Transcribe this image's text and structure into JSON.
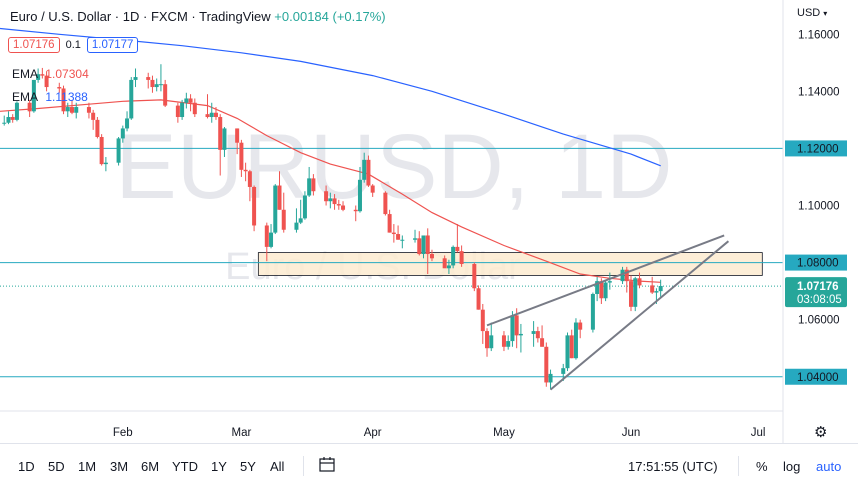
{
  "header": {
    "symbol": "Euro / U.S. Dollar",
    "interval": "1D",
    "source": "FXCM",
    "platform": "TradingView",
    "change": "+0.00184 (+0.17%)"
  },
  "quote": {
    "sell": "1.07176",
    "spread": "0.1",
    "buy": "1.07177"
  },
  "indicators": [
    {
      "name": "EMA",
      "value": "1.07304",
      "color": "#ef5350"
    },
    {
      "name": "EMA",
      "value": "1.11388",
      "color": "#2962ff"
    }
  ],
  "currency_selector": "USD",
  "watermark": {
    "symbol": "EURUSD, 1D",
    "description": "Euro / U.S. Dollar"
  },
  "price_scale": {
    "labels": [
      "1.16000",
      "1.14000",
      "1.12000",
      "1.10000",
      "1.08000",
      "1.06000",
      "1.04000"
    ],
    "current_price": "1.07176",
    "countdown": "03:08:05"
  },
  "time_scale": {
    "labels": [
      "Feb",
      "Mar",
      "Apr",
      "May",
      "Jun",
      "Jul"
    ]
  },
  "bottom_toolbar": {
    "timeframes": [
      "1D",
      "5D",
      "1M",
      "3M",
      "6M",
      "YTD",
      "1Y",
      "5Y",
      "All"
    ],
    "clock": "17:51:55 (UTC)",
    "percent": "%",
    "log": "log",
    "auto": "auto"
  },
  "colors": {
    "up": "#26a69a",
    "down": "#ef5350",
    "ema_fast": "#ef5350",
    "ema_slow": "#2962ff",
    "horizontal_line": "#26a9c0",
    "trendline": "#787b86",
    "zone_fill": "#fdebd0"
  },
  "chart_data": {
    "type": "candlestick",
    "ylim": [
      1.028,
      1.172
    ],
    "x_range_days": [
      "2022-01-03",
      "2022-07-05"
    ],
    "time_labels": [
      {
        "label": "Feb",
        "date": "2022-02-01"
      },
      {
        "label": "Mar",
        "date": "2022-03-01"
      },
      {
        "label": "Apr",
        "date": "2022-04-01"
      },
      {
        "label": "May",
        "date": "2022-05-02"
      },
      {
        "label": "Jun",
        "date": "2022-06-01"
      },
      {
        "label": "Jul",
        "date": "2022-07-01"
      }
    ],
    "candles": [
      {
        "date": "2022-01-04",
        "o": 1.129,
        "h": 1.1315,
        "l": 1.128,
        "c": 1.129
      },
      {
        "date": "2022-01-05",
        "o": 1.129,
        "h": 1.133,
        "l": 1.1285,
        "c": 1.131
      },
      {
        "date": "2022-01-06",
        "o": 1.131,
        "h": 1.132,
        "l": 1.129,
        "c": 1.13
      },
      {
        "date": "2022-01-07",
        "o": 1.13,
        "h": 1.1365,
        "l": 1.1295,
        "c": 1.136
      },
      {
        "date": "2022-01-10",
        "o": 1.136,
        "h": 1.137,
        "l": 1.131,
        "c": 1.133
      },
      {
        "date": "2022-01-11",
        "o": 1.133,
        "h": 1.144,
        "l": 1.1325,
        "c": 1.144
      },
      {
        "date": "2022-01-12",
        "o": 1.144,
        "h": 1.148,
        "l": 1.143,
        "c": 1.146
      },
      {
        "date": "2022-01-13",
        "o": 1.146,
        "h": 1.1482,
        "l": 1.1445,
        "c": 1.1455
      },
      {
        "date": "2022-01-14",
        "o": 1.1455,
        "h": 1.147,
        "l": 1.14,
        "c": 1.1415
      },
      {
        "date": "2022-01-17",
        "o": 1.1415,
        "h": 1.143,
        "l": 1.1395,
        "c": 1.141
      },
      {
        "date": "2022-01-18",
        "o": 1.141,
        "h": 1.142,
        "l": 1.132,
        "c": 1.133
      },
      {
        "date": "2022-01-19",
        "o": 1.133,
        "h": 1.136,
        "l": 1.131,
        "c": 1.1345
      },
      {
        "date": "2022-01-20",
        "o": 1.1345,
        "h": 1.137,
        "l": 1.132,
        "c": 1.1325
      },
      {
        "date": "2022-01-21",
        "o": 1.1325,
        "h": 1.136,
        "l": 1.1305,
        "c": 1.1345
      },
      {
        "date": "2022-01-24",
        "o": 1.1345,
        "h": 1.136,
        "l": 1.1305,
        "c": 1.1325
      },
      {
        "date": "2022-01-25",
        "o": 1.1325,
        "h": 1.1335,
        "l": 1.1265,
        "c": 1.13
      },
      {
        "date": "2022-01-26",
        "o": 1.13,
        "h": 1.131,
        "l": 1.1235,
        "c": 1.124
      },
      {
        "date": "2022-01-27",
        "o": 1.124,
        "h": 1.125,
        "l": 1.114,
        "c": 1.1145
      },
      {
        "date": "2022-01-28",
        "o": 1.1145,
        "h": 1.117,
        "l": 1.112,
        "c": 1.115
      },
      {
        "date": "2022-01-31",
        "o": 1.115,
        "h": 1.124,
        "l": 1.114,
        "c": 1.1235
      },
      {
        "date": "2022-02-01",
        "o": 1.1235,
        "h": 1.128,
        "l": 1.122,
        "c": 1.127
      },
      {
        "date": "2022-02-02",
        "o": 1.127,
        "h": 1.133,
        "l": 1.126,
        "c": 1.1305
      },
      {
        "date": "2022-02-03",
        "o": 1.1305,
        "h": 1.145,
        "l": 1.13,
        "c": 1.144
      },
      {
        "date": "2022-02-04",
        "o": 1.144,
        "h": 1.148,
        "l": 1.1415,
        "c": 1.145
      },
      {
        "date": "2022-02-07",
        "o": 1.145,
        "h": 1.1465,
        "l": 1.141,
        "c": 1.144
      },
      {
        "date": "2022-02-08",
        "o": 1.144,
        "h": 1.1455,
        "l": 1.1395,
        "c": 1.1415
      },
      {
        "date": "2022-02-09",
        "o": 1.1415,
        "h": 1.1445,
        "l": 1.14,
        "c": 1.1425
      },
      {
        "date": "2022-02-10",
        "o": 1.1425,
        "h": 1.1495,
        "l": 1.14,
        "c": 1.1425
      },
      {
        "date": "2022-02-11",
        "o": 1.1425,
        "h": 1.144,
        "l": 1.1345,
        "c": 1.135
      },
      {
        "date": "2022-02-14",
        "o": 1.135,
        "h": 1.136,
        "l": 1.129,
        "c": 1.131
      },
      {
        "date": "2022-02-15",
        "o": 1.131,
        "h": 1.137,
        "l": 1.13,
        "c": 1.136
      },
      {
        "date": "2022-02-16",
        "o": 1.136,
        "h": 1.1395,
        "l": 1.134,
        "c": 1.1375
      },
      {
        "date": "2022-02-17",
        "o": 1.1375,
        "h": 1.139,
        "l": 1.133,
        "c": 1.136
      },
      {
        "date": "2022-02-18",
        "o": 1.136,
        "h": 1.1375,
        "l": 1.131,
        "c": 1.132
      },
      {
        "date": "2022-02-21",
        "o": 1.132,
        "h": 1.139,
        "l": 1.1305,
        "c": 1.131
      },
      {
        "date": "2022-02-22",
        "o": 1.131,
        "h": 1.136,
        "l": 1.129,
        "c": 1.1325
      },
      {
        "date": "2022-02-23",
        "o": 1.1325,
        "h": 1.1345,
        "l": 1.13,
        "c": 1.131
      },
      {
        "date": "2022-02-24",
        "o": 1.131,
        "h": 1.132,
        "l": 1.1105,
        "c": 1.1195
      },
      {
        "date": "2022-02-25",
        "o": 1.1195,
        "h": 1.1275,
        "l": 1.117,
        "c": 1.127
      },
      {
        "date": "2022-02-28",
        "o": 1.127,
        "h": 1.127,
        "l": 1.118,
        "c": 1.122
      },
      {
        "date": "2022-03-01",
        "o": 1.122,
        "h": 1.123,
        "l": 1.11,
        "c": 1.1125
      },
      {
        "date": "2022-03-02",
        "o": 1.1125,
        "h": 1.115,
        "l": 1.1085,
        "c": 1.112
      },
      {
        "date": "2022-03-03",
        "o": 1.112,
        "h": 1.1125,
        "l": 1.1015,
        "c": 1.1065
      },
      {
        "date": "2022-03-04",
        "o": 1.1065,
        "h": 1.107,
        "l": 1.091,
        "c": 1.093
      },
      {
        "date": "2022-03-07",
        "o": 1.093,
        "h": 1.094,
        "l": 1.0805,
        "c": 1.0855
      },
      {
        "date": "2022-03-08",
        "o": 1.0855,
        "h": 1.0935,
        "l": 1.085,
        "c": 1.0905
      },
      {
        "date": "2022-03-09",
        "o": 1.0905,
        "h": 1.1075,
        "l": 1.09,
        "c": 1.107
      },
      {
        "date": "2022-03-10",
        "o": 1.107,
        "h": 1.112,
        "l": 1.0985,
        "c": 1.0985
      },
      {
        "date": "2022-03-11",
        "o": 1.0985,
        "h": 1.1045,
        "l": 1.0905,
        "c": 1.0915
      },
      {
        "date": "2022-03-14",
        "o": 1.0915,
        "h": 1.099,
        "l": 1.0905,
        "c": 1.094
      },
      {
        "date": "2022-03-15",
        "o": 1.094,
        "h": 1.102,
        "l": 1.0935,
        "c": 1.0955
      },
      {
        "date": "2022-03-16",
        "o": 1.0955,
        "h": 1.105,
        "l": 1.095,
        "c": 1.1035
      },
      {
        "date": "2022-03-17",
        "o": 1.1035,
        "h": 1.1135,
        "l": 1.103,
        "c": 1.1095
      },
      {
        "date": "2022-03-18",
        "o": 1.1095,
        "h": 1.111,
        "l": 1.1035,
        "c": 1.105
      },
      {
        "date": "2022-03-21",
        "o": 1.105,
        "h": 1.107,
        "l": 1.1,
        "c": 1.1015
      },
      {
        "date": "2022-03-22",
        "o": 1.1015,
        "h": 1.1045,
        "l": 1.099,
        "c": 1.1025
      },
      {
        "date": "2022-03-23",
        "o": 1.1025,
        "h": 1.104,
        "l": 1.0985,
        "c": 1.1005
      },
      {
        "date": "2022-03-24",
        "o": 1.1005,
        "h": 1.102,
        "l": 1.0985,
        "c": 1.1
      },
      {
        "date": "2022-03-25",
        "o": 1.1,
        "h": 1.1015,
        "l": 1.098,
        "c": 1.0985
      },
      {
        "date": "2022-03-28",
        "o": 1.0985,
        "h": 1.1,
        "l": 1.0945,
        "c": 1.098
      },
      {
        "date": "2022-03-29",
        "o": 1.098,
        "h": 1.1135,
        "l": 1.0975,
        "c": 1.109
      },
      {
        "date": "2022-03-30",
        "o": 1.109,
        "h": 1.1185,
        "l": 1.108,
        "c": 1.116
      },
      {
        "date": "2022-03-31",
        "o": 1.116,
        "h": 1.1175,
        "l": 1.1065,
        "c": 1.107
      },
      {
        "date": "2022-04-01",
        "o": 1.107,
        "h": 1.1075,
        "l": 1.103,
        "c": 1.1045
      },
      {
        "date": "2022-04-04",
        "o": 1.1045,
        "h": 1.105,
        "l": 1.0965,
        "c": 1.097
      },
      {
        "date": "2022-04-05",
        "o": 1.097,
        "h": 1.0985,
        "l": 1.0905,
        "c": 1.0905
      },
      {
        "date": "2022-04-06",
        "o": 1.0905,
        "h": 1.0935,
        "l": 1.087,
        "c": 1.09
      },
      {
        "date": "2022-04-07",
        "o": 1.09,
        "h": 1.093,
        "l": 1.088,
        "c": 1.088
      },
      {
        "date": "2022-04-08",
        "o": 1.088,
        "h": 1.0895,
        "l": 1.085,
        "c": 1.088
      },
      {
        "date": "2022-04-11",
        "o": 1.088,
        "h": 1.0915,
        "l": 1.087,
        "c": 1.0885
      },
      {
        "date": "2022-04-12",
        "o": 1.0885,
        "h": 1.091,
        "l": 1.0825,
        "c": 1.083
      },
      {
        "date": "2022-04-13",
        "o": 1.083,
        "h": 1.0885,
        "l": 1.0815,
        "c": 1.0895
      },
      {
        "date": "2022-04-14",
        "o": 1.0895,
        "h": 1.092,
        "l": 1.076,
        "c": 1.083
      },
      {
        "date": "2022-04-15",
        "o": 1.083,
        "h": 1.0845,
        "l": 1.0805,
        "c": 1.0815
      },
      {
        "date": "2022-04-18",
        "o": 1.0815,
        "h": 1.0825,
        "l": 1.0785,
        "c": 1.078
      },
      {
        "date": "2022-04-19",
        "o": 1.078,
        "h": 1.081,
        "l": 1.076,
        "c": 1.079
      },
      {
        "date": "2022-04-20",
        "o": 1.079,
        "h": 1.086,
        "l": 1.078,
        "c": 1.0855
      },
      {
        "date": "2022-04-21",
        "o": 1.0855,
        "h": 1.0935,
        "l": 1.0835,
        "c": 1.084
      },
      {
        "date": "2022-04-22",
        "o": 1.084,
        "h": 1.086,
        "l": 1.0785,
        "c": 1.0795
      },
      {
        "date": "2022-04-25",
        "o": 1.0795,
        "h": 1.08,
        "l": 1.07,
        "c": 1.071
      },
      {
        "date": "2022-04-26",
        "o": 1.071,
        "h": 1.072,
        "l": 1.0635,
        "c": 1.0635
      },
      {
        "date": "2022-04-27",
        "o": 1.0635,
        "h": 1.0655,
        "l": 1.0515,
        "c": 1.056
      },
      {
        "date": "2022-04-28",
        "o": 1.056,
        "h": 1.057,
        "l": 1.047,
        "c": 1.05
      },
      {
        "date": "2022-04-29",
        "o": 1.05,
        "h": 1.059,
        "l": 1.049,
        "c": 1.0545
      },
      {
        "date": "2022-05-02",
        "o": 1.0545,
        "h": 1.056,
        "l": 1.049,
        "c": 1.0505
      },
      {
        "date": "2022-05-03",
        "o": 1.0505,
        "h": 1.0545,
        "l": 1.0495,
        "c": 1.0525
      },
      {
        "date": "2022-05-04",
        "o": 1.0525,
        "h": 1.063,
        "l": 1.0505,
        "c": 1.0615
      },
      {
        "date": "2022-05-05",
        "o": 1.0615,
        "h": 1.064,
        "l": 1.05,
        "c": 1.0545
      },
      {
        "date": "2022-05-06",
        "o": 1.0545,
        "h": 1.0585,
        "l": 1.0485,
        "c": 1.055
      },
      {
        "date": "2022-05-09",
        "o": 1.055,
        "h": 1.0595,
        "l": 1.0505,
        "c": 1.056
      },
      {
        "date": "2022-05-10",
        "o": 1.056,
        "h": 1.0575,
        "l": 1.052,
        "c": 1.0535
      },
      {
        "date": "2022-05-11",
        "o": 1.0535,
        "h": 1.058,
        "l": 1.0505,
        "c": 1.0505
      },
      {
        "date": "2022-05-12",
        "o": 1.0505,
        "h": 1.052,
        "l": 1.0365,
        "c": 1.038
      },
      {
        "date": "2022-05-13",
        "o": 1.038,
        "h": 1.0425,
        "l": 1.0355,
        "c": 1.041
      },
      {
        "date": "2022-05-16",
        "o": 1.041,
        "h": 1.0445,
        "l": 1.0385,
        "c": 1.043
      },
      {
        "date": "2022-05-17",
        "o": 1.043,
        "h": 1.0555,
        "l": 1.042,
        "c": 1.0545
      },
      {
        "date": "2022-05-18",
        "o": 1.0545,
        "h": 1.0565,
        "l": 1.0465,
        "c": 1.0465
      },
      {
        "date": "2022-05-19",
        "o": 1.0465,
        "h": 1.0605,
        "l": 1.046,
        "c": 1.059
      },
      {
        "date": "2022-05-20",
        "o": 1.059,
        "h": 1.06,
        "l": 1.0535,
        "c": 1.0565
      },
      {
        "date": "2022-05-23",
        "o": 1.0565,
        "h": 1.0695,
        "l": 1.0555,
        "c": 1.069
      },
      {
        "date": "2022-05-24",
        "o": 1.069,
        "h": 1.075,
        "l": 1.0665,
        "c": 1.0735
      },
      {
        "date": "2022-05-25",
        "o": 1.0735,
        "h": 1.0745,
        "l": 1.0655,
        "c": 1.0675
      },
      {
        "date": "2022-05-26",
        "o": 1.0675,
        "h": 1.0735,
        "l": 1.0665,
        "c": 1.073
      },
      {
        "date": "2022-05-27",
        "o": 1.073,
        "h": 1.0765,
        "l": 1.0705,
        "c": 1.0735
      },
      {
        "date": "2022-05-30",
        "o": 1.0735,
        "h": 1.0785,
        "l": 1.0725,
        "c": 1.0775
      },
      {
        "date": "2022-05-31",
        "o": 1.0775,
        "h": 1.0785,
        "l": 1.0695,
        "c": 1.0735
      },
      {
        "date": "2022-06-01",
        "o": 1.0735,
        "h": 1.0755,
        "l": 1.063,
        "c": 1.0645
      },
      {
        "date": "2022-06-02",
        "o": 1.0645,
        "h": 1.075,
        "l": 1.063,
        "c": 1.0745
      },
      {
        "date": "2022-06-03",
        "o": 1.0745,
        "h": 1.0765,
        "l": 1.071,
        "c": 1.072
      },
      {
        "date": "2022-06-06",
        "o": 1.072,
        "h": 1.075,
        "l": 1.069,
        "c": 1.0695
      },
      {
        "date": "2022-06-07",
        "o": 1.0695,
        "h": 1.071,
        "l": 1.0655,
        "c": 1.07
      },
      {
        "date": "2022-06-08",
        "o": 1.07,
        "h": 1.074,
        "l": 1.068,
        "c": 1.0718
      }
    ],
    "ema_fast": [
      [
        "2022-01-03",
        1.133
      ],
      [
        "2022-01-12",
        1.134
      ],
      [
        "2022-01-24",
        1.1355
      ],
      [
        "2022-02-01",
        1.1365
      ],
      [
        "2022-02-10",
        1.137
      ],
      [
        "2022-02-21",
        1.135
      ],
      [
        "2022-02-28",
        1.1305
      ],
      [
        "2022-03-07",
        1.1245
      ],
      [
        "2022-03-15",
        1.1185
      ],
      [
        "2022-03-22",
        1.1145
      ],
      [
        "2022-03-31",
        1.111
      ],
      [
        "2022-04-08",
        1.104
      ],
      [
        "2022-04-15",
        1.0975
      ],
      [
        "2022-04-22",
        1.0925
      ],
      [
        "2022-05-02",
        1.086
      ],
      [
        "2022-05-12",
        1.0805
      ],
      [
        "2022-05-20",
        1.076
      ],
      [
        "2022-05-27",
        1.0745
      ],
      [
        "2022-06-03",
        1.0735
      ],
      [
        "2022-06-08",
        1.0731
      ]
    ],
    "ema_slow": [
      [
        "2022-01-03",
        1.162
      ],
      [
        "2022-01-17",
        1.16
      ],
      [
        "2022-02-01",
        1.158
      ],
      [
        "2022-02-15",
        1.156
      ],
      [
        "2022-03-01",
        1.1535
      ],
      [
        "2022-03-15",
        1.1505
      ],
      [
        "2022-04-01",
        1.1455
      ],
      [
        "2022-04-15",
        1.14
      ],
      [
        "2022-05-02",
        1.132
      ],
      [
        "2022-05-16",
        1.125
      ],
      [
        "2022-06-01",
        1.118
      ],
      [
        "2022-06-08",
        1.1139
      ]
    ],
    "horizontal_lines": [
      1.12,
      1.08,
      1.04
    ],
    "current_price_line": 1.07176,
    "zone": {
      "from_date": "2022-03-05",
      "to_date": "2022-07-02",
      "low": 1.0755,
      "high": 1.0835
    },
    "trendlines": [
      {
        "from": [
          "2022-04-28",
          1.058
        ],
        "to": [
          "2022-06-23",
          1.0895
        ]
      },
      {
        "from": [
          "2022-05-13",
          1.0355
        ],
        "to": [
          "2022-06-24",
          1.0875
        ]
      }
    ]
  }
}
